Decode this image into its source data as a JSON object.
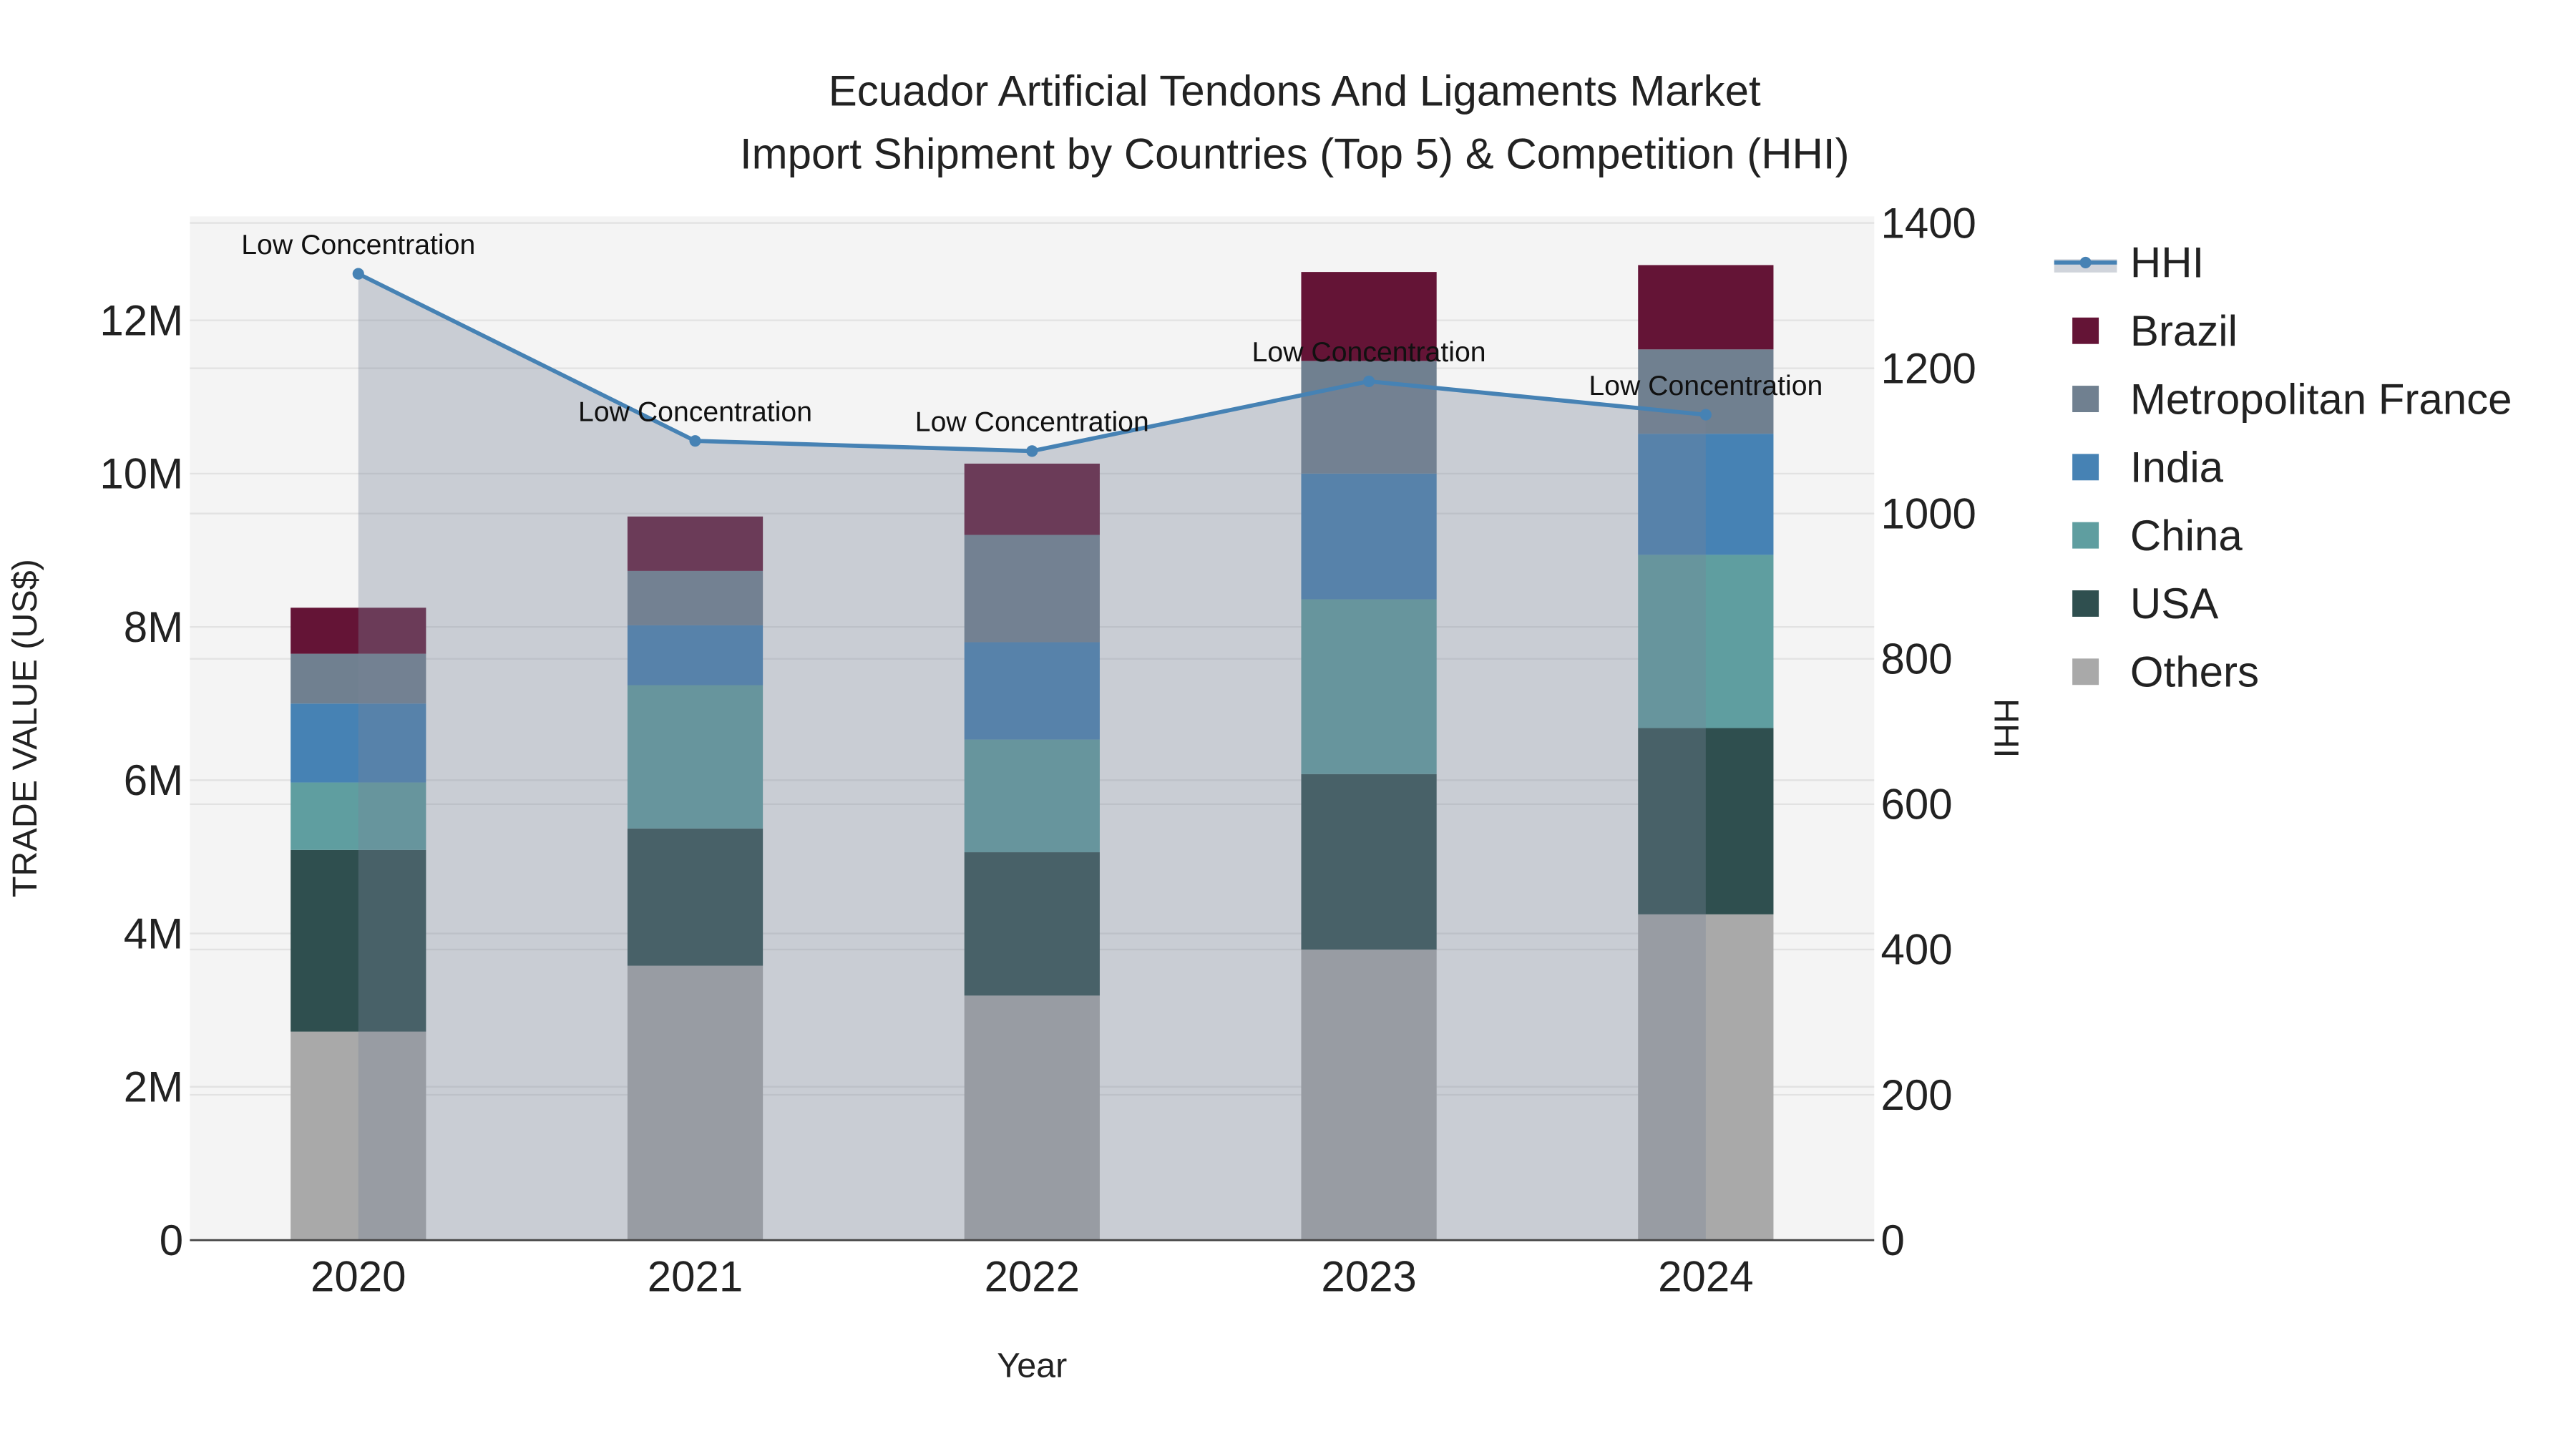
{
  "chart_data": {
    "type": "bar",
    "stacked": true,
    "title": "Ecuador Artificial Tendons And Ligaments Market",
    "subtitle": "Import Shipment by Countries (Top 5) & Competition (HHI)",
    "xlabel": "Year",
    "ylabel": "TRADE VALUE (US$)",
    "y2label": "HHI",
    "categories": [
      "2020",
      "2021",
      "2022",
      "2023",
      "2024"
    ],
    "ylim": [
      0,
      13200000
    ],
    "y2lim": [
      0,
      1400
    ],
    "yticks": [
      0,
      2000000,
      4000000,
      6000000,
      8000000,
      10000000,
      12000000
    ],
    "ytick_labels": [
      "0",
      "2M",
      "4M",
      "6M",
      "8M",
      "10M",
      "12M"
    ],
    "y2ticks": [
      0,
      200,
      400,
      600,
      800,
      1000,
      1200,
      1400
    ],
    "y2tick_labels": [
      "0",
      "200",
      "400",
      "600",
      "800",
      "1000",
      "1200",
      "1400"
    ],
    "series": [
      {
        "name": "Others",
        "color": "#a9a9a9",
        "values": [
          2720000,
          3580000,
          3190000,
          3790000,
          4250000
        ]
      },
      {
        "name": "USA",
        "color": "#2f4f4f",
        "values": [
          2370000,
          1790000,
          1870000,
          2290000,
          2430000
        ]
      },
      {
        "name": "China",
        "color": "#5f9ea0",
        "values": [
          880000,
          1870000,
          1470000,
          2280000,
          2260000
        ]
      },
      {
        "name": "India",
        "color": "#4682b4",
        "values": [
          1030000,
          780000,
          1270000,
          1640000,
          1580000
        ]
      },
      {
        "name": "Metropolitan France",
        "color": "#708090",
        "values": [
          650000,
          710000,
          1400000,
          1470000,
          1100000
        ]
      },
      {
        "name": "Brazil",
        "color": "#641436",
        "values": [
          600000,
          710000,
          930000,
          1160000,
          1100000
        ]
      }
    ],
    "line": {
      "name": "HHI",
      "color": "#4682b4",
      "values": [
        1330,
        1100,
        1086,
        1182,
        1136
      ]
    },
    "annotations": [
      "Low Concentration",
      "Low Concentration",
      "Low Concentration",
      "Low Concentration",
      "Low Concentration"
    ],
    "legend_order": [
      "HHI",
      "Brazil",
      "Metropolitan France",
      "India",
      "China",
      "USA",
      "Others"
    ],
    "legend_placement": "right",
    "grid": true
  }
}
